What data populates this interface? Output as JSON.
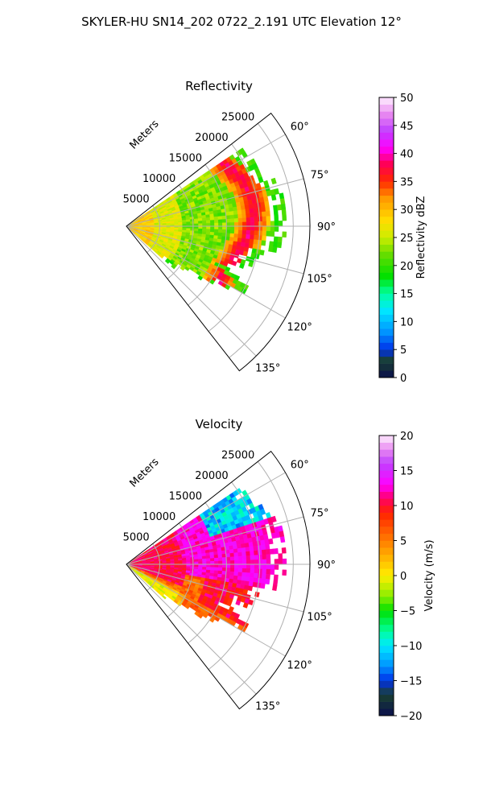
{
  "figure_title": "SKYLER-HU  SN14_202  0722_2.191 UTC Elevation 12°",
  "chart_data": [
    {
      "type": "heatmap",
      "projection": "polar-sector",
      "title": "Reflectivity",
      "radial_label": "Meters",
      "radial_ticks": [
        5000,
        10000,
        15000,
        20000,
        25000
      ],
      "radial_tick_labels": [
        "5000",
        "10000",
        "15000",
        "20000",
        "25000"
      ],
      "r_range": [
        0,
        27500
      ],
      "azimuth_range_deg": [
        52,
        142
      ],
      "azimuth_ticks": [
        60,
        75,
        90,
        105,
        120,
        135
      ],
      "azimuth_tick_labels": [
        "60°",
        "75°",
        "90°",
        "105°",
        "120°",
        "135°"
      ],
      "grid": true,
      "colorbar": {
        "label": "Reflectivity dBZ",
        "range": [
          0,
          50
        ],
        "ticks": [
          0,
          5,
          10,
          15,
          20,
          25,
          30,
          35,
          40,
          45,
          50
        ],
        "tick_labels": [
          "0",
          "5",
          "10",
          "15",
          "20",
          "25",
          "30",
          "35",
          "40",
          "45",
          "50"
        ],
        "stops": [
          [
            0,
            "#0a0f4d"
          ],
          [
            3,
            "#1a4030"
          ],
          [
            5,
            "#0030e8"
          ],
          [
            8,
            "#0090ff"
          ],
          [
            12,
            "#00e8ff"
          ],
          [
            15,
            "#00ffa0"
          ],
          [
            18,
            "#00e000"
          ],
          [
            22,
            "#66dd00"
          ],
          [
            25,
            "#ccee00"
          ],
          [
            28,
            "#ffdd00"
          ],
          [
            32,
            "#ff9900"
          ],
          [
            35,
            "#ff2a00"
          ],
          [
            38,
            "#ff0050"
          ],
          [
            41,
            "#ff00ff"
          ],
          [
            44,
            "#c040ff"
          ],
          [
            47,
            "#e888f0"
          ],
          [
            50,
            "#fff0ff"
          ]
        ]
      },
      "data_summary": {
        "echo_extent_m": 24000,
        "background_dbz": 22,
        "near_range_dbz": 30,
        "core_dbz": 36,
        "core_ranges_m": [
          16000,
          20000
        ],
        "core_azimuths_deg": [
          65,
          75,
          85,
          95,
          105,
          115
        ]
      }
    },
    {
      "type": "heatmap",
      "projection": "polar-sector",
      "title": "Velocity",
      "radial_label": "Meters",
      "radial_ticks": [
        5000,
        10000,
        15000,
        20000,
        25000
      ],
      "radial_tick_labels": [
        "5000",
        "10000",
        "15000",
        "20000",
        "25000"
      ],
      "r_range": [
        0,
        27500
      ],
      "azimuth_range_deg": [
        52,
        142
      ],
      "azimuth_ticks": [
        60,
        75,
        90,
        105,
        120,
        135
      ],
      "azimuth_tick_labels": [
        "60°",
        "75°",
        "90°",
        "105°",
        "120°",
        "135°"
      ],
      "grid": true,
      "colorbar": {
        "label": "Velocity (m/s)",
        "range": [
          -20,
          20
        ],
        "ticks": [
          -20,
          -15,
          -10,
          -5,
          0,
          5,
          10,
          15,
          20
        ],
        "tick_labels": [
          "−20",
          "−15",
          "−10",
          "−5",
          "0",
          "5",
          "10",
          "15",
          "20"
        ],
        "stops": [
          [
            -20,
            "#0a0f4d"
          ],
          [
            -17,
            "#1a4030"
          ],
          [
            -15,
            "#0030e8"
          ],
          [
            -13,
            "#0090ff"
          ],
          [
            -10,
            "#00e8ff"
          ],
          [
            -8,
            "#00ffa0"
          ],
          [
            -5,
            "#00e000"
          ],
          [
            -3,
            "#88ee00"
          ],
          [
            0,
            "#ffee00"
          ],
          [
            3,
            "#ffaa00"
          ],
          [
            6,
            "#ff6600"
          ],
          [
            9,
            "#ff2200"
          ],
          [
            11,
            "#ff0066"
          ],
          [
            13,
            "#ff00ff"
          ],
          [
            16,
            "#c040ff"
          ],
          [
            18,
            "#e888f0"
          ],
          [
            20,
            "#fff0ff"
          ]
        ]
      },
      "data_summary": {
        "echo_extent_m": 24000,
        "outbound_max_ms": 12,
        "inbound_min_ms": -12,
        "outbound_region_deg": [
          60,
          100
        ],
        "inbound_region_deg": [
          55,
          72
        ],
        "near_zero_region_deg": [
          105,
          135
        ]
      }
    }
  ]
}
